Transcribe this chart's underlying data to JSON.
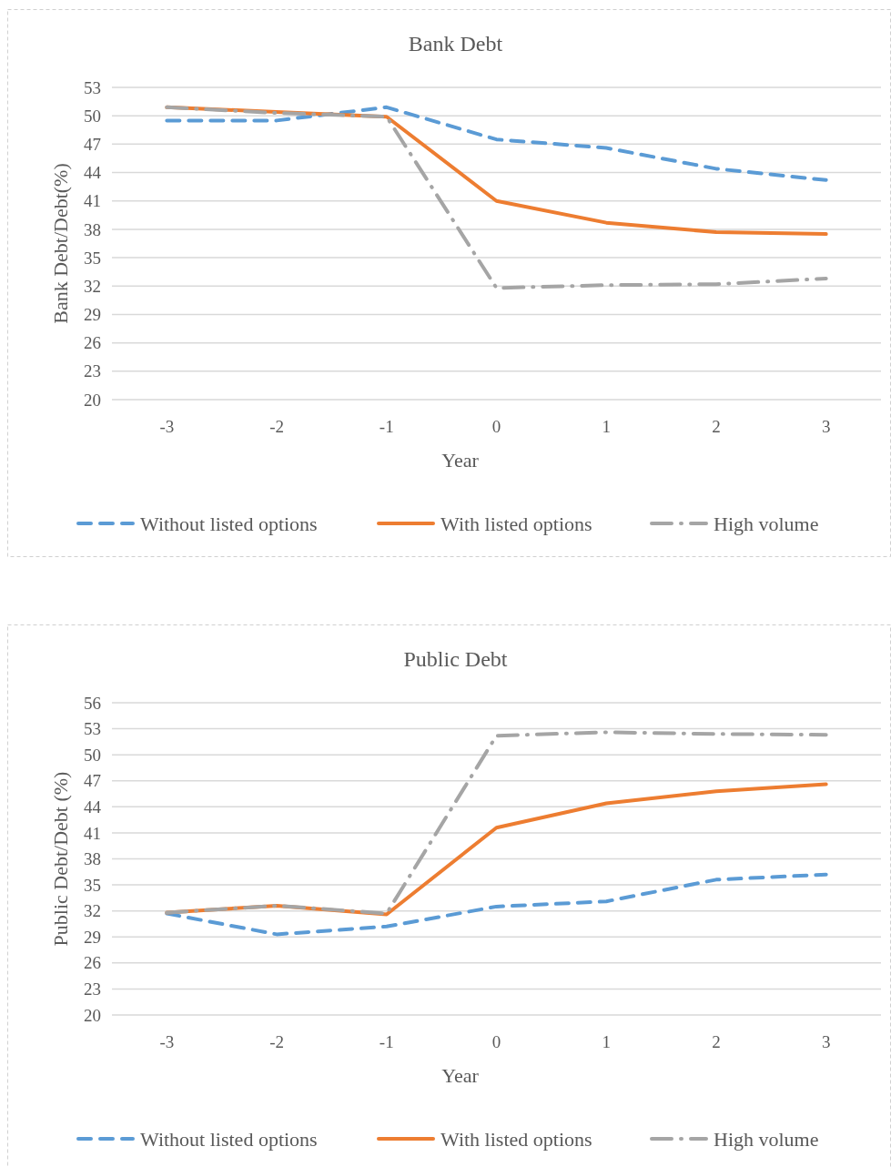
{
  "chart_data": [
    {
      "type": "line",
      "title": "Bank Debt",
      "xlabel": "Year",
      "ylabel": "Bank Debt/Debt(%)",
      "categories": [
        "-3",
        "-2",
        "-1",
        "0",
        "1",
        "2",
        "3"
      ],
      "ylim": [
        20,
        53
      ],
      "yticks": [
        20,
        23,
        26,
        29,
        32,
        35,
        38,
        41,
        44,
        47,
        50,
        53
      ],
      "grid": "y",
      "legend": "bottom",
      "series": [
        {
          "name": "Without listed options",
          "color": "#5b9bd5",
          "line_style": "dashed",
          "values": [
            49.5,
            49.5,
            50.9,
            47.5,
            46.6,
            44.4,
            43.2
          ]
        },
        {
          "name": "With listed options",
          "color": "#ed7d31",
          "line_style": "solid",
          "values": [
            50.9,
            50.4,
            49.9,
            41.0,
            38.7,
            37.7,
            37.5
          ]
        },
        {
          "name": "High volume",
          "color": "#a5a5a5",
          "line_style": "dashdot",
          "values": [
            50.9,
            50.3,
            49.9,
            31.8,
            32.1,
            32.2,
            32.8
          ]
        }
      ]
    },
    {
      "type": "line",
      "title": "Public Debt",
      "xlabel": "Year",
      "ylabel": "Public Debt/Debt (%)",
      "categories": [
        "-3",
        "-2",
        "-1",
        "0",
        "1",
        "2",
        "3"
      ],
      "ylim": [
        20,
        56
      ],
      "yticks": [
        20,
        23,
        26,
        29,
        32,
        35,
        38,
        41,
        44,
        47,
        50,
        53,
        56
      ],
      "grid": "y",
      "legend": "bottom",
      "series": [
        {
          "name": "Without listed options",
          "color": "#5b9bd5",
          "line_style": "dashed",
          "values": [
            31.7,
            29.3,
            30.2,
            32.5,
            33.1,
            35.6,
            36.2
          ]
        },
        {
          "name": "With listed options",
          "color": "#ed7d31",
          "line_style": "solid",
          "values": [
            31.8,
            32.6,
            31.6,
            41.6,
            44.4,
            45.8,
            46.6
          ]
        },
        {
          "name": "High volume",
          "color": "#a5a5a5",
          "line_style": "dashdot",
          "values": [
            31.8,
            32.6,
            31.7,
            52.2,
            52.6,
            52.4,
            52.3
          ]
        }
      ]
    }
  ]
}
